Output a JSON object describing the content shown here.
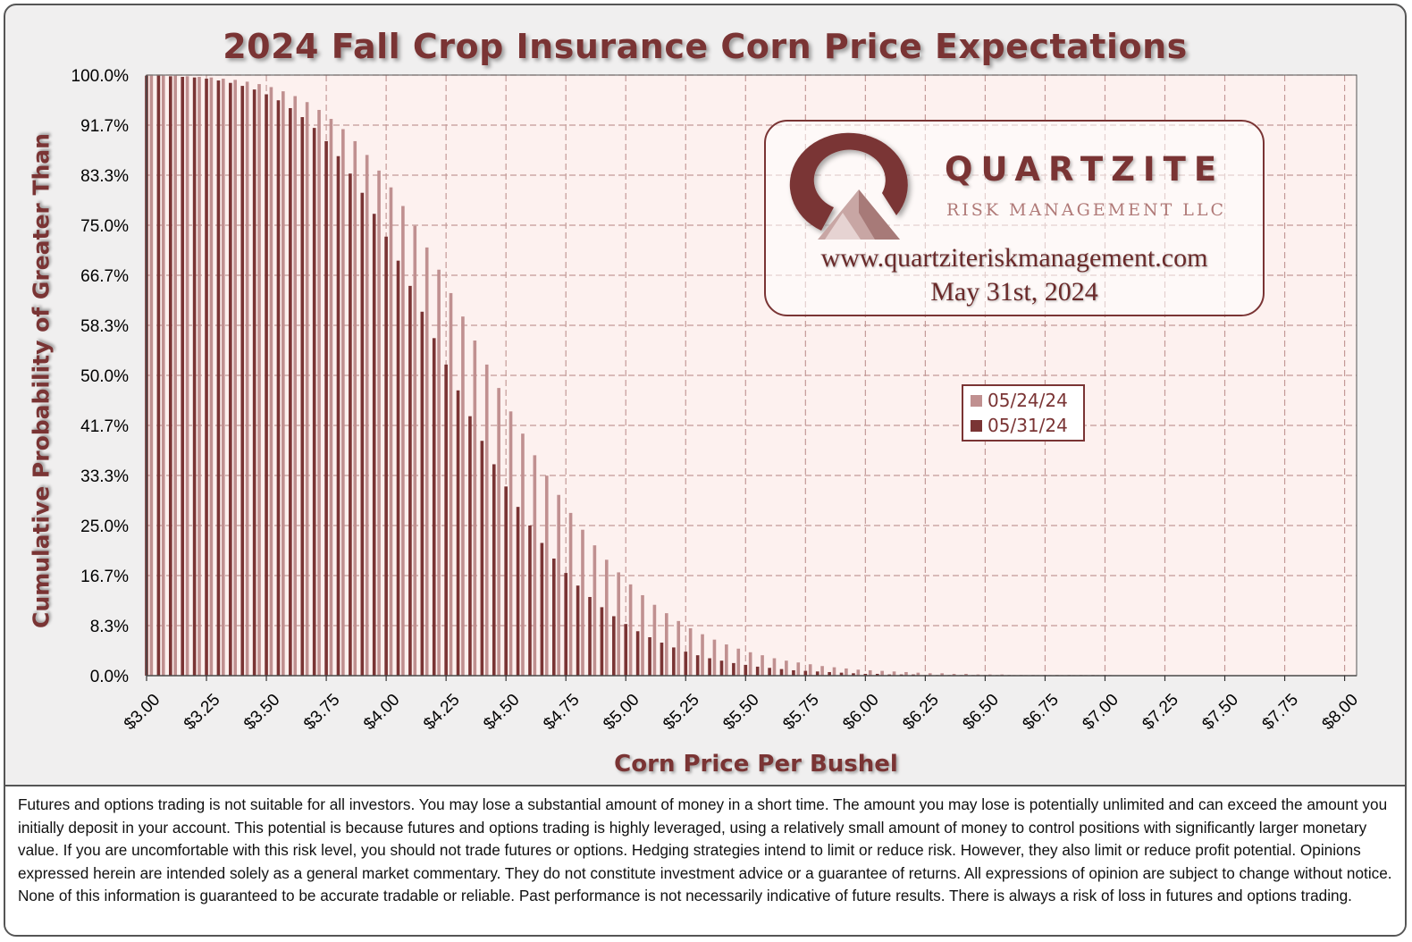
{
  "colors": {
    "series_0524": "#c09090",
    "series_0531": "#7a3434",
    "title": "#7a3434",
    "plot_bg": "#fdf1ef",
    "grid": "#c49a98"
  },
  "chart_data": {
    "type": "bar",
    "title": "2024 Fall Crop Insurance Corn Price Expectations",
    "xlabel": "Corn Price Per Bushel",
    "ylabel": "Cumulative Probability of Greater Than",
    "xlim": [
      3.0,
      8.05
    ],
    "ylim": [
      0,
      100
    ],
    "x_tick_labels": [
      "$3.00",
      "$3.25",
      "$3.50",
      "$3.75",
      "$4.00",
      "$4.25",
      "$4.50",
      "$4.75",
      "$5.00",
      "$5.25",
      "$5.50",
      "$5.75",
      "$6.00",
      "$6.25",
      "$6.50",
      "$6.75",
      "$7.00",
      "$7.25",
      "$7.50",
      "$7.75",
      "$8.00"
    ],
    "y_tick_labels": [
      "0.0%",
      "8.3%",
      "16.7%",
      "25.0%",
      "33.3%",
      "41.7%",
      "50.0%",
      "58.3%",
      "66.7%",
      "75.0%",
      "83.3%",
      "91.7%",
      "100.0%"
    ],
    "x_start": 3.0,
    "x_step": 0.05,
    "legend_position": "center-right",
    "series": [
      {
        "name": "05/24/24",
        "values": [
          99.9,
          99.9,
          99.9,
          99.8,
          99.7,
          99.6,
          99.4,
          99.2,
          98.9,
          98.5,
          98.0,
          97.3,
          96.5,
          95.5,
          94.2,
          92.7,
          91.0,
          89.0,
          86.7,
          84.1,
          81.3,
          78.2,
          74.9,
          71.3,
          67.6,
          63.7,
          59.8,
          55.8,
          51.8,
          47.9,
          44.0,
          40.3,
          36.7,
          33.3,
          30.1,
          27.1,
          24.3,
          21.7,
          19.3,
          17.2,
          15.2,
          13.4,
          11.8,
          10.4,
          9.1,
          7.9,
          6.9,
          6.0,
          5.2,
          4.5,
          3.9,
          3.4,
          2.9,
          2.5,
          2.2,
          1.9,
          1.6,
          1.4,
          1.2,
          1.0,
          0.9,
          0.8,
          0.7,
          0.6,
          0.5,
          0.4,
          0.4,
          0.3,
          0.3,
          0.2,
          0.2,
          0.2,
          0.1,
          0.1,
          0.1,
          0.1,
          0.1,
          0.1,
          0.1,
          0.1,
          0.1
        ]
      },
      {
        "name": "05/31/24",
        "values": [
          99.9,
          99.9,
          99.8,
          99.7,
          99.6,
          99.4,
          99.1,
          98.7,
          98.2,
          97.6,
          96.8,
          95.8,
          94.5,
          93.0,
          91.2,
          89.0,
          86.5,
          83.6,
          80.4,
          76.9,
          73.1,
          69.1,
          64.9,
          60.6,
          56.2,
          51.8,
          47.5,
          43.2,
          39.1,
          35.2,
          31.5,
          28.1,
          25.0,
          22.1,
          19.5,
          17.1,
          15.0,
          13.1,
          11.4,
          9.9,
          8.6,
          7.4,
          6.4,
          5.5,
          4.7,
          4.0,
          3.4,
          2.9,
          2.5,
          2.1,
          1.8,
          1.5,
          1.3,
          1.1,
          0.9,
          0.8,
          0.7,
          0.6,
          0.5,
          0.4,
          0.3,
          0.3,
          0.2,
          0.2,
          0.2,
          0.1,
          0.1,
          0.1,
          0.1,
          0.1,
          0.1,
          0.1,
          0.1,
          0.1,
          0.1,
          0.1,
          0.1,
          0.1,
          0.1,
          0.1,
          0.1
        ]
      }
    ]
  },
  "logo": {
    "brand": "QUARTZITE",
    "subtitle": "RISK MANAGEMENT LLC",
    "website": "www.quartziteriskmanagement.com",
    "date": "May 31st, 2024"
  },
  "footer": {
    "disclaimer": "Futures and options trading is not suitable for all investors. You may lose a substantial amount of money in a short time. The amount you may lose is potentially unlimited and can exceed the amount you initially deposit in your account. This potential is because futures and options trading is highly leveraged, using a relatively small amount of money to control positions with significantly larger monetary value. If you are uncomfortable with this risk level, you should not trade futures or options. Hedging strategies intend to limit or reduce risk. However, they also limit or reduce profit potential. Opinions expressed herein are intended solely as a general market commentary. They do not constitute investment advice or a guarantee of returns. All expressions of opinion are subject to change without notice. None of this information is guaranteed to be accurate tradable or reliable. Past performance is not necessarily indicative of future results. There is always a risk of loss in futures and options trading."
  }
}
